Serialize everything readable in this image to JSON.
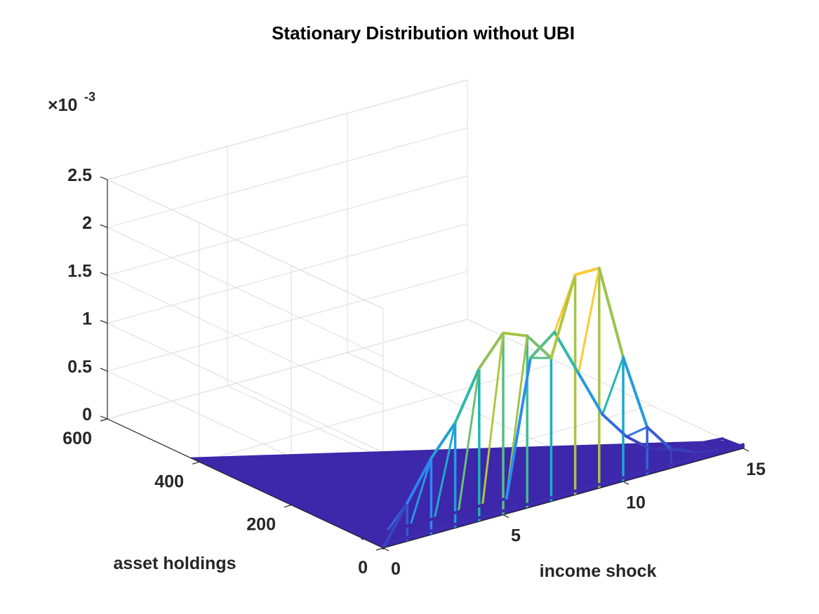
{
  "chart_data": {
    "type": "surface3d",
    "title": "Stationary Distribution without UBI",
    "xlabel": "income shock",
    "ylabel": "asset holdings",
    "zlabel": "",
    "z_multiplier_label": "×10",
    "z_multiplier_exponent": "-3",
    "xlim": [
      0,
      15
    ],
    "ylim": [
      0,
      600
    ],
    "zlim": [
      0,
      0.0025
    ],
    "x_ticks": [
      "0",
      "5",
      "10",
      "15"
    ],
    "y_ticks": [
      "0",
      "200",
      "400",
      "600"
    ],
    "z_ticks": [
      "0",
      "0.5",
      "1",
      "1.5",
      "2",
      "2.5"
    ],
    "grid": true,
    "colormap": "parula",
    "income_shock": [
      0,
      1,
      2,
      3,
      4,
      5,
      6,
      7,
      8,
      9,
      10,
      11,
      12,
      13,
      14,
      15
    ],
    "peak_density_at_zero_assets": [
      0.0,
      0.0004,
      0.0008,
      0.0011,
      0.0016,
      0.0019,
      0.0018,
      0.0015,
      0.0023,
      0.0023,
      0.0013,
      0.0005,
      0.0002,
      0.0001,
      5e-05,
      2e-05
    ],
    "second_ridge_density": [
      0.0,
      0.0,
      0.0,
      0.0,
      0.0,
      0.0,
      0.0,
      0.0014,
      0.0016,
      0.0011,
      0.0006,
      0.0003,
      0.0001,
      5e-05,
      2e-05,
      0.0
    ],
    "floor_density": 0.0
  }
}
